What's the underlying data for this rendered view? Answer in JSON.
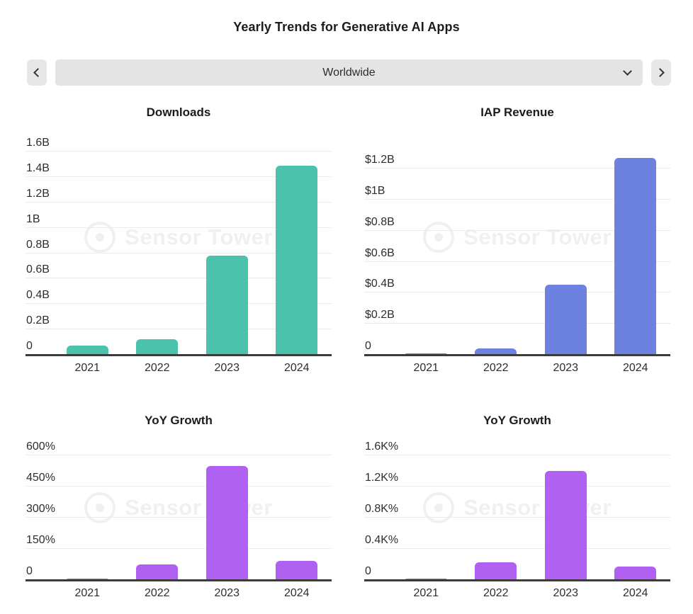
{
  "page": {
    "title": "Yearly Trends for Generative AI Apps"
  },
  "nav": {
    "prev_button": "previous region",
    "next_button": "next region",
    "selector_value": "Worldwide"
  },
  "watermark": {
    "text": "Sensor Tower"
  },
  "chart_data": [
    {
      "type": "bar",
      "title": "Downloads",
      "color": "#4AC2AC",
      "categories": [
        "2021",
        "2022",
        "2023",
        "2024"
      ],
      "values": [
        0.07,
        0.12,
        0.78,
        1.49
      ],
      "unit": "billions of downloads",
      "ylim": [
        0,
        1.6
      ],
      "grid": "on",
      "ticks": [
        {
          "label": "0",
          "value": 0
        },
        {
          "label": "0.2B",
          "value": 0.2
        },
        {
          "label": "0.4B",
          "value": 0.4
        },
        {
          "label": "0.6B",
          "value": 0.6
        },
        {
          "label": "0.8B",
          "value": 0.8
        },
        {
          "label": "1B",
          "value": 1.0
        },
        {
          "label": "1.2B",
          "value": 1.2
        },
        {
          "label": "1.4B",
          "value": 1.4
        },
        {
          "label": "1.6B",
          "value": 1.6
        }
      ]
    },
    {
      "type": "bar",
      "title": "IAP Revenue",
      "color": "#6D82E0",
      "categories": [
        "2021",
        "2022",
        "2023",
        "2024"
      ],
      "values": [
        0.01,
        0.04,
        0.45,
        1.27
      ],
      "unit": "billions USD",
      "ylim": [
        0,
        1.31
      ],
      "grid": "on",
      "ticks": [
        {
          "label": "0",
          "value": 0
        },
        {
          "label": "$0.2B",
          "value": 0.2
        },
        {
          "label": "$0.4B",
          "value": 0.4
        },
        {
          "label": "$0.6B",
          "value": 0.6
        },
        {
          "label": "$0.8B",
          "value": 0.8
        },
        {
          "label": "$1B",
          "value": 1.0
        },
        {
          "label": "$1.2B",
          "value": 1.2
        }
      ]
    },
    {
      "type": "bar",
      "title": "YoY Growth",
      "color": "#B161F1",
      "categories": [
        "2021",
        "2022",
        "2023",
        "2024"
      ],
      "values": [
        8,
        75,
        550,
        92
      ],
      "unit": "percent (downloads growth)",
      "ylim": [
        0,
        600
      ],
      "grid": "on",
      "ticks": [
        {
          "label": "0",
          "value": 0
        },
        {
          "label": "150%",
          "value": 150
        },
        {
          "label": "300%",
          "value": 300
        },
        {
          "label": "450%",
          "value": 450
        },
        {
          "label": "600%",
          "value": 600
        }
      ]
    },
    {
      "type": "bar",
      "title": "YoY Growth",
      "color": "#B161F1",
      "categories": [
        "2021",
        "2022",
        "2023",
        "2024"
      ],
      "values": [
        20,
        225,
        1400,
        170
      ],
      "unit": "percent (revenue growth)",
      "ylim": [
        0,
        1600
      ],
      "grid": "on",
      "ticks": [
        {
          "label": "0",
          "value": 0
        },
        {
          "label": "0.4K%",
          "value": 400
        },
        {
          "label": "0.8K%",
          "value": 800
        },
        {
          "label": "1.2K%",
          "value": 1200
        },
        {
          "label": "1.6K%",
          "value": 1600
        }
      ]
    }
  ]
}
